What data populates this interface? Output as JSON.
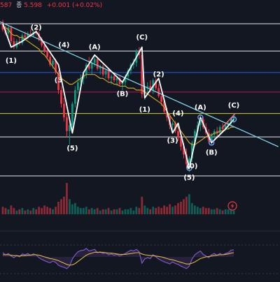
{
  "header": {
    "open_fragment": "587",
    "close_label": "종",
    "close_value": "5.598",
    "change": "+0.001 (+0.02%)"
  },
  "colors": {
    "background": "#131722",
    "candle_up": "#089981",
    "candle_down": "#f23645",
    "ma_line": "#c9a227",
    "wave_line": "#ffffff",
    "trendline": "#7fd3e6",
    "level_white": "#ffffff",
    "level_blue": "#2962ff",
    "level_red": "#c2185b",
    "level_yellow": "#e8e23f",
    "rsi": "#7e57c2",
    "rsi_signal": "#e0b43c",
    "projection": "#ff6b6b"
  },
  "chart_data": {
    "type": "candlestick",
    "title": "",
    "price_axis": {
      "visible": false
    },
    "levels": [
      {
        "name": "",
        "color_key": "level_white",
        "value": 98
      },
      {
        "name": "",
        "color_key": "level_white",
        "value": 84
      },
      {
        "name": "",
        "color_key": "level_blue",
        "value": 73
      },
      {
        "name": "",
        "color_key": "level_red",
        "value": 63
      },
      {
        "name": "",
        "color_key": "level_yellow",
        "value": 52
      },
      {
        "name": "",
        "color_key": "level_white",
        "value": 40
      },
      {
        "name": "",
        "color_key": "level_white",
        "value": 20
      }
    ],
    "y_range": [
      10,
      103
    ],
    "wave_labels": [
      {
        "text": "(1)",
        "bar": 3,
        "price": 78
      },
      {
        "text": "(2)",
        "bar": 12,
        "price": 95
      },
      {
        "text": "(4)",
        "bar": 22,
        "price": 86
      },
      {
        "text": "(3",
        "bar": 20,
        "price": 68
      },
      {
        "text": "(5)",
        "bar": 25,
        "price": 33
      },
      {
        "text": "(A)",
        "bar": 33,
        "price": 85
      },
      {
        "text": "(B)",
        "bar": 43,
        "price": 61
      },
      {
        "text": "(C)",
        "bar": 50,
        "price": 90
      },
      {
        "text": "(2)",
        "bar": 56,
        "price": 71
      },
      {
        "text": "(1)",
        "bar": 51,
        "price": 53
      },
      {
        "text": "(4)",
        "bar": 63,
        "price": 51
      },
      {
        "text": "(3)",
        "bar": 61,
        "price": 37
      },
      {
        "text": "(A)",
        "bar": 71,
        "price": 54
      },
      {
        "text": "(C)",
        "bar": 83,
        "price": 55
      },
      {
        "text": "(B)",
        "bar": 75,
        "price": 31
      },
      {
        "text": "(0)",
        "bar": 68,
        "price": 24
      },
      {
        "text": "(5)",
        "bar": 67,
        "price": 18
      }
    ],
    "wave_path": [
      [
        0,
        98
      ],
      [
        3,
        86
      ],
      [
        7,
        89
      ],
      [
        12,
        94
      ],
      [
        20,
        77
      ],
      [
        25,
        42
      ],
      [
        29,
        73
      ],
      [
        33,
        82
      ],
      [
        43,
        68
      ],
      [
        50,
        86
      ],
      [
        51,
        60
      ],
      [
        56,
        70
      ],
      [
        61,
        42
      ],
      [
        63,
        47
      ],
      [
        67,
        24
      ],
      [
        71,
        50
      ],
      [
        75,
        37
      ],
      [
        80,
        44
      ],
      [
        83,
        49
      ]
    ],
    "wave_nodes": [
      [
        71,
        50
      ],
      [
        75,
        37
      ],
      [
        83,
        49
      ],
      [
        67,
        24
      ]
    ],
    "trendline": [
      [
        0,
        99
      ],
      [
        99,
        35
      ]
    ],
    "ma": [
      97,
      96,
      95,
      93,
      92,
      92,
      91,
      91,
      90,
      89,
      88,
      87,
      86,
      85,
      83,
      82,
      80,
      78,
      76,
      74,
      72,
      70,
      69,
      68,
      67,
      67,
      68,
      69,
      70,
      71,
      72,
      72,
      72,
      72,
      71,
      70,
      70,
      69,
      68,
      68,
      67,
      67,
      66,
      66,
      66,
      65,
      65,
      65,
      64,
      64,
      64,
      63,
      62,
      61,
      60,
      59,
      58,
      57,
      55,
      53,
      51,
      49,
      47,
      45,
      43,
      41,
      39,
      37,
      36,
      36,
      37,
      38,
      39,
      40,
      41,
      41,
      42,
      42,
      43,
      43,
      44,
      44,
      45,
      45
    ],
    "candles": [
      [
        99,
        100,
        94,
        95
      ],
      [
        95,
        97,
        92,
        93
      ],
      [
        93,
        97,
        91,
        96
      ],
      [
        96,
        97,
        88,
        89
      ],
      [
        89,
        91,
        85,
        86
      ],
      [
        86,
        90,
        85,
        89
      ],
      [
        89,
        91,
        87,
        88
      ],
      [
        88,
        93,
        87,
        92
      ],
      [
        92,
        94,
        90,
        91
      ],
      [
        91,
        94,
        90,
        93
      ],
      [
        93,
        95,
        91,
        92
      ],
      [
        92,
        95,
        91,
        94
      ],
      [
        94,
        96,
        92,
        93
      ],
      [
        93,
        94,
        89,
        90
      ],
      [
        90,
        91,
        86,
        87
      ],
      [
        87,
        89,
        83,
        84
      ],
      [
        84,
        86,
        80,
        81
      ],
      [
        81,
        82,
        76,
        77
      ],
      [
        77,
        80,
        75,
        79
      ],
      [
        79,
        80,
        72,
        73
      ],
      [
        73,
        74,
        62,
        64
      ],
      [
        64,
        66,
        55,
        57
      ],
      [
        57,
        60,
        48,
        50
      ],
      [
        50,
        52,
        40,
        43
      ],
      [
        43,
        48,
        36,
        46
      ],
      [
        46,
        58,
        44,
        57
      ],
      [
        57,
        66,
        55,
        64
      ],
      [
        64,
        70,
        62,
        68
      ],
      [
        68,
        72,
        65,
        70
      ],
      [
        70,
        73,
        67,
        72
      ],
      [
        72,
        78,
        70,
        77
      ],
      [
        77,
        81,
        74,
        75
      ],
      [
        75,
        79,
        72,
        78
      ],
      [
        78,
        82,
        76,
        80
      ],
      [
        80,
        81,
        74,
        75
      ],
      [
        75,
        77,
        72,
        76
      ],
      [
        76,
        77,
        71,
        72
      ],
      [
        72,
        75,
        70,
        74
      ],
      [
        74,
        75,
        69,
        70
      ],
      [
        70,
        72,
        67,
        71
      ],
      [
        71,
        73,
        68,
        69
      ],
      [
        69,
        71,
        66,
        70
      ],
      [
        70,
        71,
        66,
        67
      ],
      [
        67,
        69,
        64,
        68
      ],
      [
        68,
        72,
        66,
        71
      ],
      [
        71,
        75,
        69,
        74
      ],
      [
        74,
        78,
        72,
        77
      ],
      [
        77,
        80,
        75,
        78
      ],
      [
        78,
        85,
        76,
        84
      ],
      [
        84,
        86,
        80,
        82
      ],
      [
        82,
        83,
        60,
        62
      ],
      [
        62,
        66,
        59,
        65
      ],
      [
        65,
        68,
        62,
        66
      ],
      [
        66,
        69,
        63,
        64
      ],
      [
        64,
        70,
        62,
        69
      ],
      [
        69,
        70,
        64,
        65
      ],
      [
        65,
        67,
        60,
        61
      ],
      [
        61,
        62,
        56,
        58
      ],
      [
        58,
        59,
        52,
        53
      ],
      [
        53,
        55,
        48,
        50
      ],
      [
        50,
        52,
        44,
        46
      ],
      [
        46,
        48,
        42,
        47
      ],
      [
        47,
        48,
        42,
        43
      ],
      [
        43,
        45,
        38,
        40
      ],
      [
        40,
        42,
        33,
        35
      ],
      [
        35,
        37,
        29,
        31
      ],
      [
        31,
        34,
        24,
        26
      ],
      [
        26,
        30,
        22,
        29
      ],
      [
        29,
        38,
        27,
        37
      ],
      [
        37,
        44,
        35,
        43
      ],
      [
        43,
        48,
        40,
        46
      ],
      [
        46,
        51,
        43,
        49
      ],
      [
        49,
        50,
        44,
        45
      ],
      [
        45,
        47,
        41,
        42
      ],
      [
        42,
        44,
        37,
        38
      ],
      [
        38,
        42,
        36,
        41
      ],
      [
        41,
        44,
        39,
        43
      ],
      [
        43,
        45,
        40,
        42
      ],
      [
        42,
        46,
        41,
        45
      ],
      [
        45,
        47,
        43,
        44
      ],
      [
        44,
        47,
        43,
        46
      ],
      [
        46,
        48,
        44,
        47
      ],
      [
        47,
        50,
        45,
        49
      ],
      [
        49,
        52,
        47,
        51
      ]
    ],
    "volumes": [
      6,
      5,
      4,
      7,
      5,
      3,
      4,
      5,
      3,
      4,
      3,
      5,
      4,
      6,
      5,
      7,
      6,
      5,
      4,
      6,
      10,
      12,
      14,
      25,
      12,
      8,
      9,
      6,
      5,
      5,
      6,
      4,
      5,
      4,
      5,
      3,
      4,
      4,
      5,
      3,
      4,
      4,
      5,
      3,
      4,
      4,
      5,
      3,
      6,
      5,
      14,
      7,
      5,
      4,
      6,
      5,
      6,
      5,
      7,
      6,
      8,
      6,
      7,
      9,
      10,
      12,
      14,
      16,
      9,
      7,
      6,
      5,
      6,
      5,
      5,
      4,
      4,
      5,
      4,
      3,
      4,
      4,
      4,
      3
    ],
    "rsi": [
      60,
      55,
      58,
      52,
      48,
      53,
      50,
      57,
      55,
      58,
      54,
      57,
      55,
      48,
      44,
      41,
      38,
      36,
      40,
      37,
      30,
      27,
      25,
      22,
      28,
      45,
      55,
      62,
      65,
      66,
      70,
      64,
      66,
      68,
      60,
      62,
      58,
      60,
      55,
      57,
      54,
      56,
      52,
      55,
      58,
      62,
      66,
      64,
      68,
      62,
      35,
      45,
      48,
      46,
      55,
      50,
      45,
      41,
      38,
      36,
      33,
      38,
      34,
      32,
      28,
      25,
      22,
      28,
      45,
      55,
      60,
      64,
      56,
      52,
      48,
      55,
      58,
      54,
      58,
      55,
      58,
      60,
      66,
      67
    ],
    "rsi_signal": [
      55,
      55,
      55,
      54,
      53,
      53,
      52,
      53,
      53,
      54,
      54,
      55,
      55,
      54,
      52,
      50,
      48,
      46,
      45,
      43,
      41,
      38,
      35,
      32,
      30,
      31,
      34,
      39,
      44,
      49,
      54,
      57,
      59,
      61,
      61,
      61,
      61,
      60,
      59,
      59,
      58,
      57,
      56,
      56,
      56,
      57,
      58,
      59,
      60,
      60,
      57,
      55,
      54,
      53,
      53,
      52,
      51,
      50,
      48,
      46,
      44,
      43,
      41,
      39,
      37,
      35,
      33,
      33,
      35,
      38,
      42,
      46,
      48,
      50,
      51,
      52,
      53,
      54,
      55,
      55,
      56,
      57,
      59,
      60
    ]
  }
}
